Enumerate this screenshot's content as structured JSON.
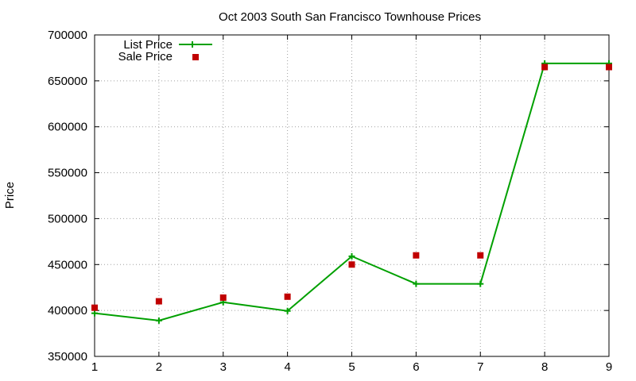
{
  "chart_data": {
    "type": "line",
    "title": "Oct 2003 South San Francisco Townhouse Prices",
    "xlabel": "",
    "ylabel": "Price",
    "x": [
      1,
      2,
      3,
      4,
      5,
      6,
      7,
      8,
      9
    ],
    "xlim": [
      1,
      9
    ],
    "ylim": [
      350000,
      700000
    ],
    "xticks": [
      1,
      2,
      3,
      4,
      5,
      6,
      7,
      8,
      9
    ],
    "yticks": [
      350000,
      400000,
      450000,
      500000,
      550000,
      600000,
      650000,
      700000
    ],
    "grid": true,
    "legend_position": "top-left",
    "series": [
      {
        "name": "List Price",
        "style": "line+points",
        "color": "#00a000",
        "marker": "plus",
        "values": [
          397000,
          389000,
          409000,
          399500,
          459000,
          429000,
          429000,
          669000,
          669000
        ]
      },
      {
        "name": "Sale Price",
        "style": "points",
        "color": "#c00000",
        "marker": "square",
        "values": [
          403000,
          410000,
          414000,
          415000,
          450000,
          460000,
          460000,
          665000,
          665000
        ]
      }
    ]
  }
}
